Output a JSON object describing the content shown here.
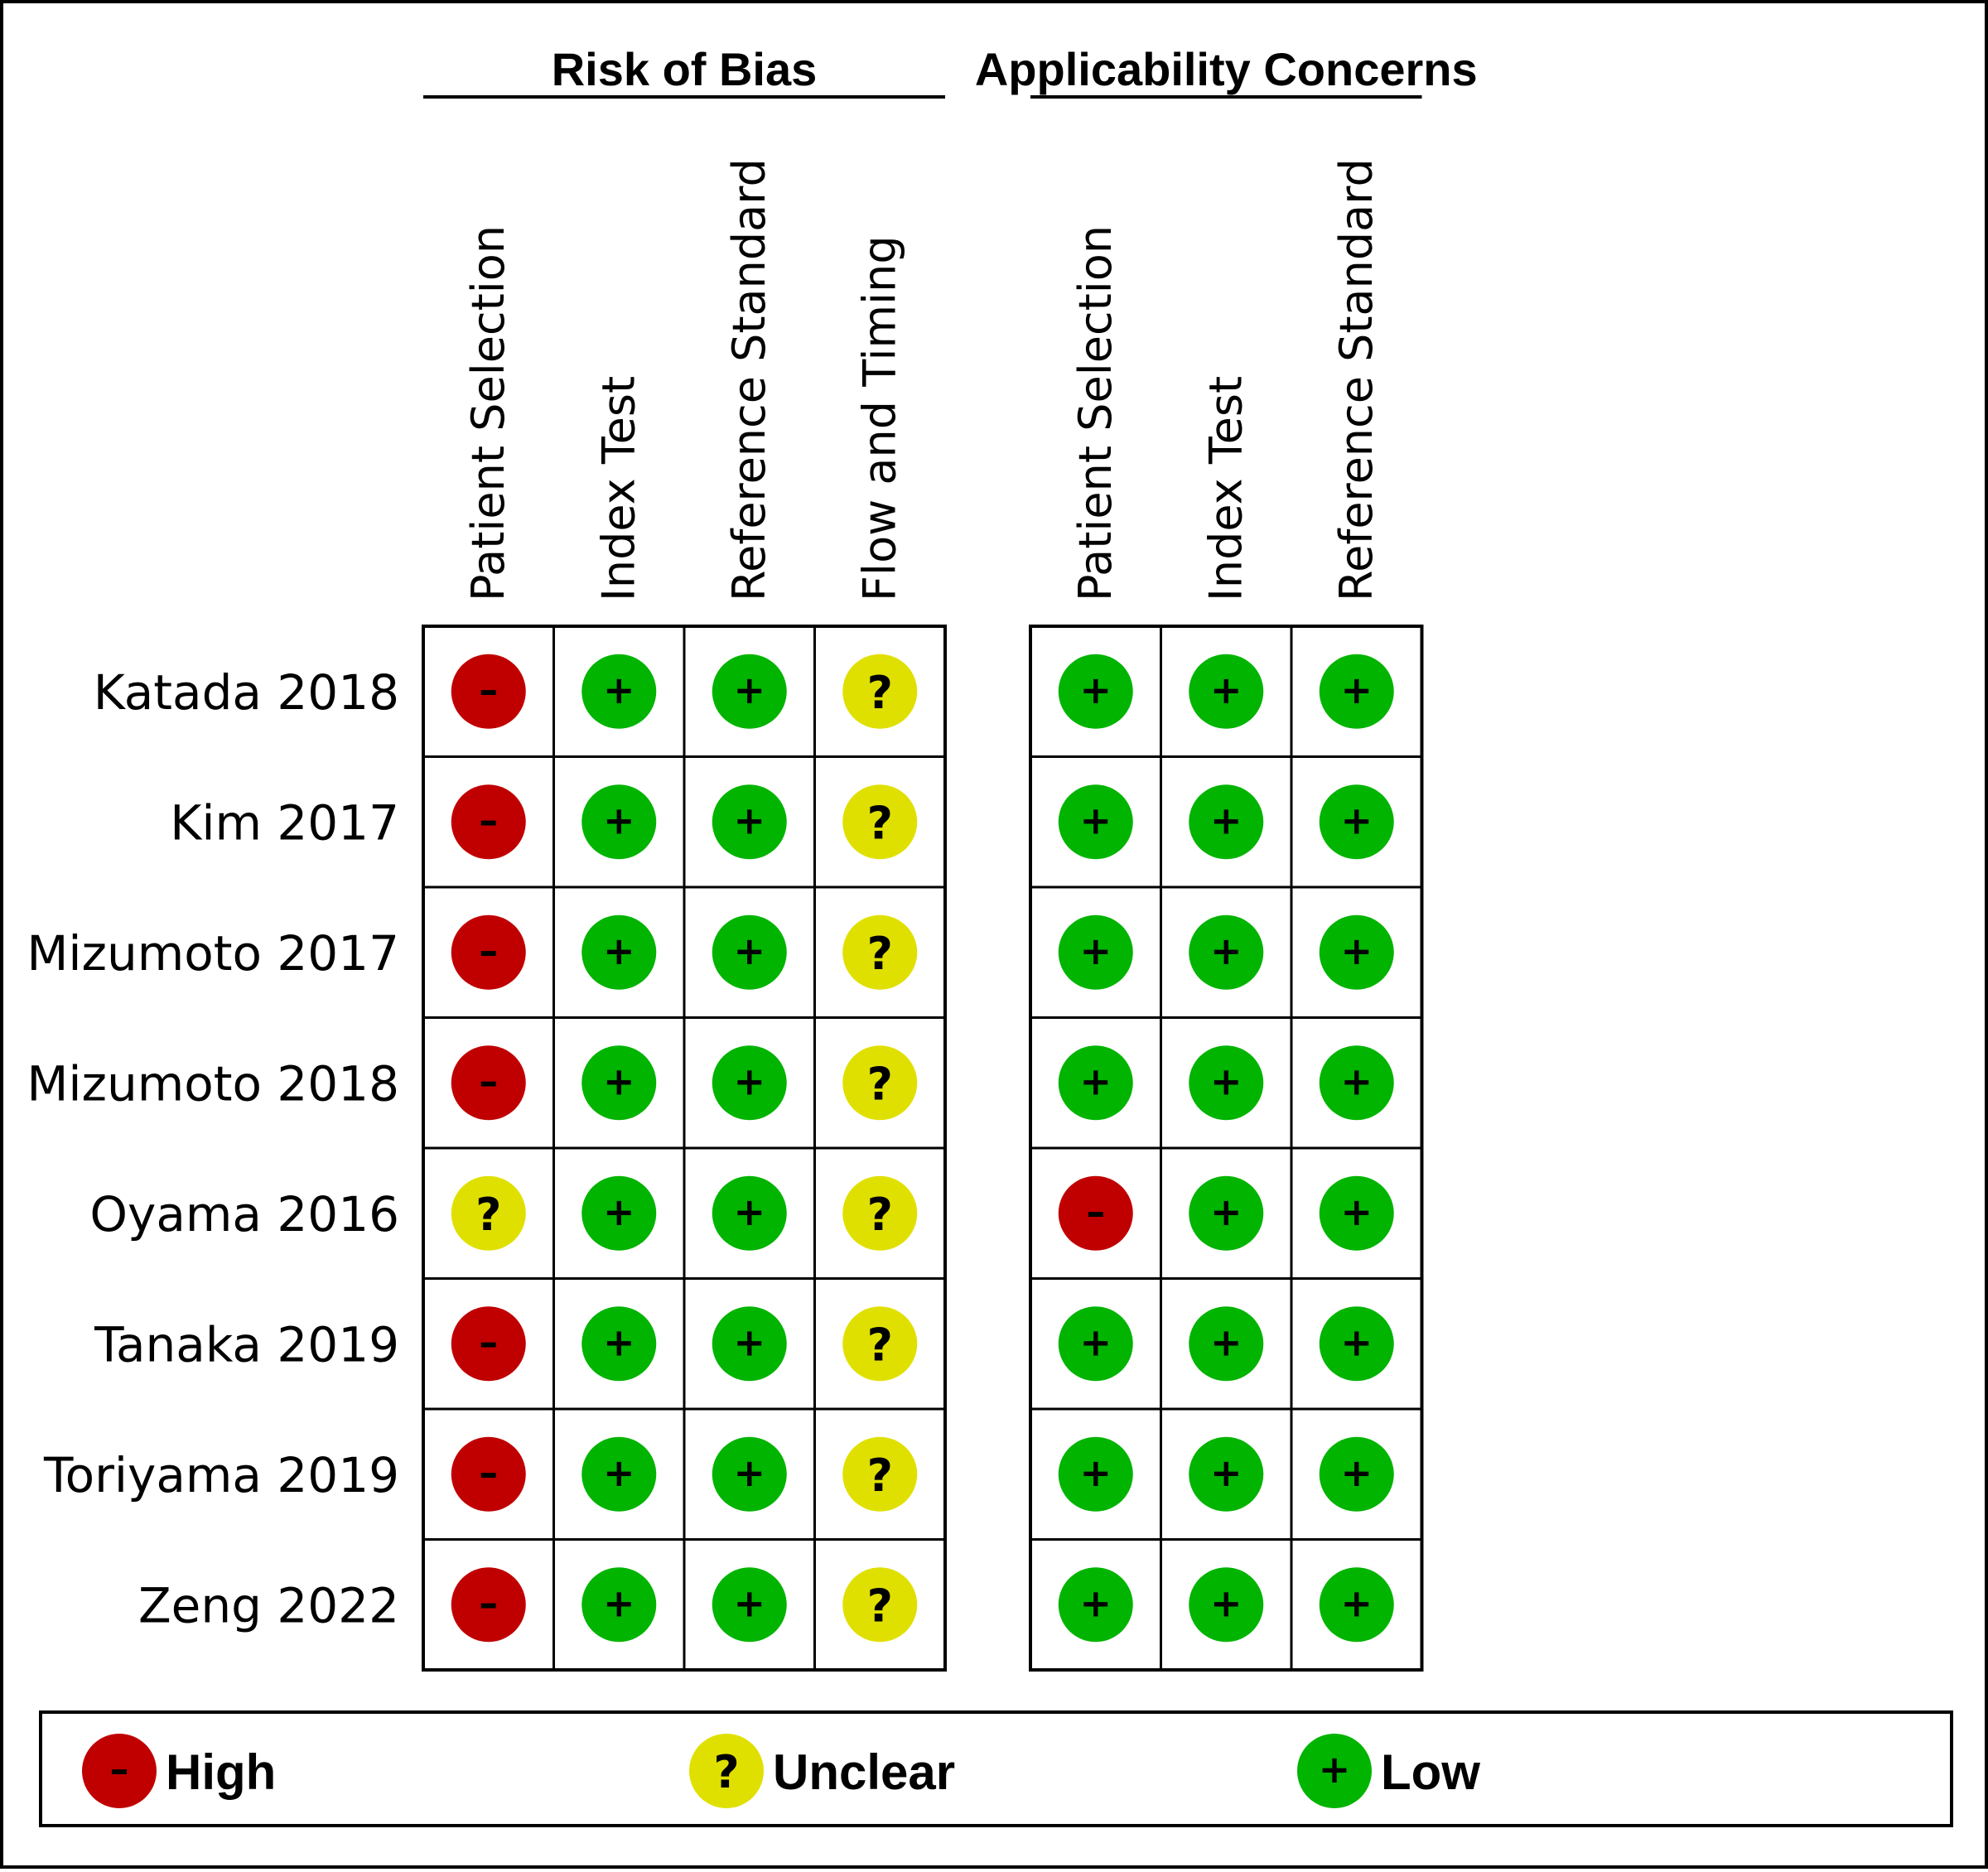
{
  "groups": [
    {
      "title": "Risk of Bias",
      "columns": [
        "Patient Selection",
        "Index Test",
        "Reference Standard",
        "Flow and Timing"
      ]
    },
    {
      "title": "Applicability Concerns",
      "columns": [
        "Patient Selection",
        "Index Test",
        "Reference Standard"
      ]
    }
  ],
  "studies": [
    {
      "name": "Katada 2018",
      "ratings": [
        "high",
        "low",
        "low",
        "unclear",
        "low",
        "low",
        "low"
      ]
    },
    {
      "name": "Kim 2017",
      "ratings": [
        "high",
        "low",
        "low",
        "unclear",
        "low",
        "low",
        "low"
      ]
    },
    {
      "name": "Mizumoto 2017",
      "ratings": [
        "high",
        "low",
        "low",
        "unclear",
        "low",
        "low",
        "low"
      ]
    },
    {
      "name": "Mizumoto 2018",
      "ratings": [
        "high",
        "low",
        "low",
        "unclear",
        "low",
        "low",
        "low"
      ]
    },
    {
      "name": "Oyama 2016",
      "ratings": [
        "unclear",
        "low",
        "low",
        "unclear",
        "high",
        "low",
        "low"
      ]
    },
    {
      "name": "Tanaka 2019",
      "ratings": [
        "high",
        "low",
        "low",
        "unclear",
        "low",
        "low",
        "low"
      ]
    },
    {
      "name": "Toriyama 2019",
      "ratings": [
        "high",
        "low",
        "low",
        "unclear",
        "low",
        "low",
        "low"
      ]
    },
    {
      "name": "Zeng 2022",
      "ratings": [
        "high",
        "low",
        "low",
        "unclear",
        "low",
        "low",
        "low"
      ]
    }
  ],
  "legend": [
    {
      "key": "high",
      "label": "High",
      "symbol": "–",
      "color": "#c00000"
    },
    {
      "key": "unclear",
      "label": "Unclear",
      "symbol": "?",
      "color": "#e0e000"
    },
    {
      "key": "low",
      "label": "Low",
      "symbol": "+",
      "color": "#00b400"
    }
  ]
}
